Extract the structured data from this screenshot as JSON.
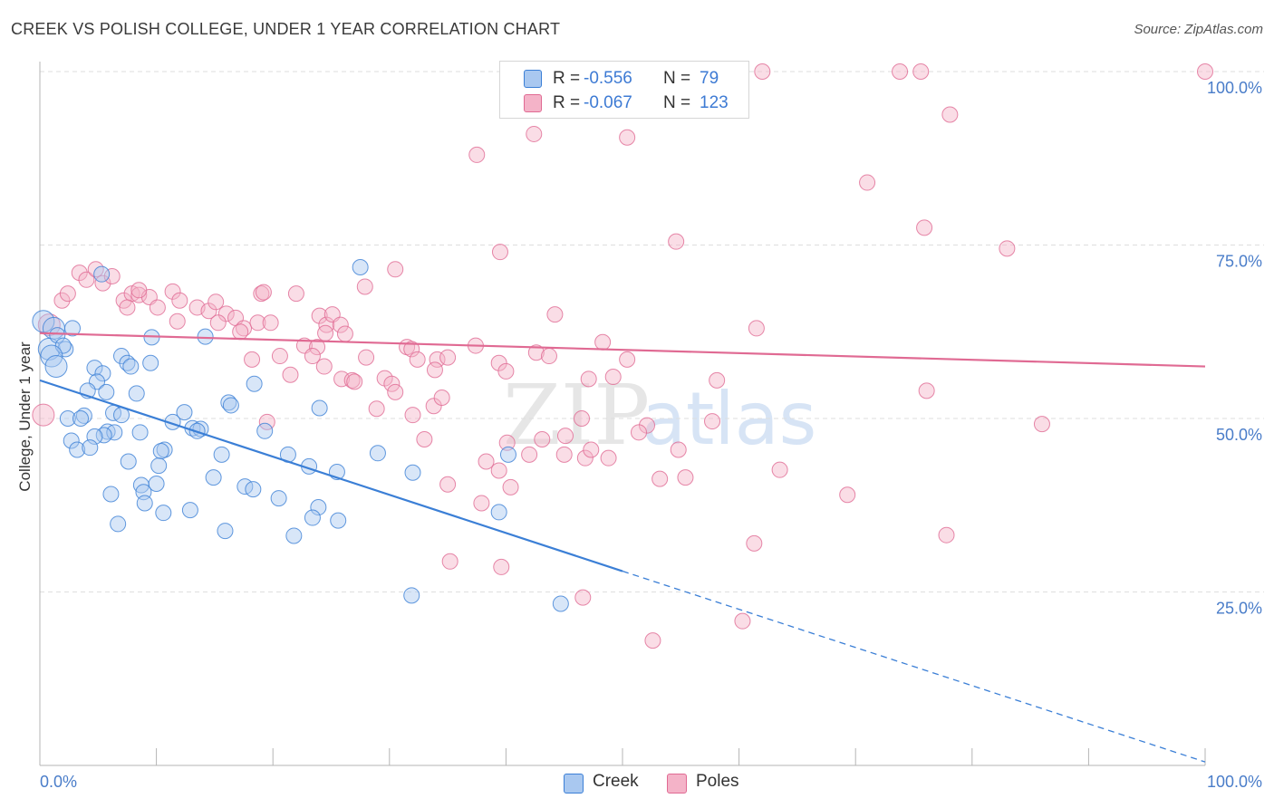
{
  "title": "CREEK VS POLISH COLLEGE, UNDER 1 YEAR CORRELATION CHART",
  "source": "Source: ZipAtlas.com",
  "watermark": {
    "zip": "ZIP",
    "atlas": "atlas"
  },
  "colors": {
    "creek": "#3b7fd6",
    "creek_fill": "#a9c8f0",
    "poles": "#e06a93",
    "poles_fill": "#f4b3c8",
    "grid": "#dedede",
    "tick_text": "#4a7dc9"
  },
  "legend": {
    "rows": [
      {
        "r_label": "R =",
        "r_value": "-0.556",
        "n_label": "N =",
        "n_value": "79"
      },
      {
        "r_label": "R =",
        "r_value": "-0.067",
        "n_label": "N =",
        "n_value": "123"
      }
    ],
    "bottom": [
      {
        "label": "Creek"
      },
      {
        "label": "Poles"
      }
    ]
  },
  "chart_data": {
    "type": "scatter",
    "title": "CREEK VS POLISH COLLEGE, UNDER 1 YEAR CORRELATION CHART",
    "xlabel": "",
    "ylabel": "College, Under 1 year",
    "xlim": [
      0,
      100
    ],
    "ylim": [
      0,
      100
    ],
    "x_tick_labels": [
      "0.0%",
      "100.0%"
    ],
    "y_ticks": [
      25,
      50,
      75,
      100
    ],
    "y_tick_labels": [
      "25.0%",
      "50.0%",
      "75.0%",
      "100.0%"
    ],
    "grid": "horizontal dashed",
    "legend_position": "top-center",
    "series": [
      {
        "name": "Creek",
        "r": -0.556,
        "n": 79,
        "trend": {
          "x0": 0,
          "y0": 55.5,
          "x1": 50,
          "y1": 28,
          "dashed_to": [
            100,
            0.5
          ]
        },
        "points": [
          [
            0.3,
            64
          ],
          [
            1.2,
            63
          ],
          [
            2.8,
            63
          ],
          [
            0.8,
            60
          ],
          [
            1.5,
            62
          ],
          [
            2.2,
            60
          ],
          [
            2.0,
            60.5
          ],
          [
            1.0,
            59
          ],
          [
            1.4,
            57.5
          ],
          [
            5.3,
            70.8
          ],
          [
            27.5,
            71.8
          ],
          [
            14.2,
            61.8
          ],
          [
            9.6,
            61.7
          ],
          [
            7.0,
            59
          ],
          [
            7.5,
            58
          ],
          [
            7.8,
            57.5
          ],
          [
            9.5,
            58
          ],
          [
            4.7,
            57.3
          ],
          [
            5.4,
            56.5
          ],
          [
            4.9,
            55.3
          ],
          [
            4.1,
            54
          ],
          [
            5.7,
            53.8
          ],
          [
            8.3,
            53.6
          ],
          [
            18.4,
            55
          ],
          [
            16.2,
            52.3
          ],
          [
            16.4,
            51.9
          ],
          [
            24.0,
            51.5
          ],
          [
            12.4,
            50.9
          ],
          [
            6.3,
            50.8
          ],
          [
            7.0,
            50.5
          ],
          [
            3.8,
            50.4
          ],
          [
            2.4,
            50
          ],
          [
            3.5,
            50
          ],
          [
            11.4,
            49.5
          ],
          [
            13.1,
            48.6
          ],
          [
            13.8,
            48.5
          ],
          [
            13.5,
            48.2
          ],
          [
            5.8,
            48.1
          ],
          [
            6.4,
            48
          ],
          [
            8.6,
            48
          ],
          [
            19.3,
            48.2
          ],
          [
            5.5,
            47.6
          ],
          [
            4.7,
            47.4
          ],
          [
            2.7,
            46.8
          ],
          [
            3.2,
            45.5
          ],
          [
            4.3,
            45.8
          ],
          [
            10.7,
            45.5
          ],
          [
            10.4,
            45.3
          ],
          [
            15.6,
            44.8
          ],
          [
            21.3,
            44.8
          ],
          [
            29.0,
            45
          ],
          [
            40.2,
            44.8
          ],
          [
            7.6,
            43.8
          ],
          [
            10.2,
            43.2
          ],
          [
            23.1,
            43.1
          ],
          [
            25.5,
            42.3
          ],
          [
            32.0,
            42.2
          ],
          [
            14.9,
            41.5
          ],
          [
            8.7,
            40.4
          ],
          [
            10.0,
            40.6
          ],
          [
            17.6,
            40.2
          ],
          [
            18.3,
            39.8
          ],
          [
            6.1,
            39.1
          ],
          [
            8.9,
            39.4
          ],
          [
            20.5,
            38.5
          ],
          [
            9.0,
            37.8
          ],
          [
            23.9,
            37.2
          ],
          [
            39.4,
            36.5
          ],
          [
            12.9,
            36.8
          ],
          [
            10.6,
            36.4
          ],
          [
            23.4,
            35.7
          ],
          [
            25.6,
            35.3
          ],
          [
            6.7,
            34.8
          ],
          [
            15.9,
            33.8
          ],
          [
            21.8,
            33.1
          ],
          [
            31.9,
            24.5
          ],
          [
            44.7,
            23.3
          ]
        ]
      },
      {
        "name": "Poles",
        "r": -0.067,
        "n": 123,
        "trend": {
          "x0": 0,
          "y0": 62.3,
          "x1": 100,
          "y1": 57.5
        },
        "points": [
          [
            0.3,
            50.5
          ],
          [
            0.8,
            63.5
          ],
          [
            1.9,
            67
          ],
          [
            2.4,
            68
          ],
          [
            3.4,
            71
          ],
          [
            4.0,
            70
          ],
          [
            4.8,
            71.5
          ],
          [
            5.4,
            69.5
          ],
          [
            6.2,
            70.5
          ],
          [
            7.2,
            67
          ],
          [
            7.9,
            68
          ],
          [
            8.5,
            67.8
          ],
          [
            7.5,
            66
          ],
          [
            9.4,
            67.5
          ],
          [
            10.1,
            66
          ],
          [
            8.5,
            68.5
          ],
          [
            11.4,
            68.3
          ],
          [
            12.0,
            67
          ],
          [
            13.5,
            66
          ],
          [
            11.8,
            64
          ],
          [
            14.5,
            65.5
          ],
          [
            15.1,
            66.8
          ],
          [
            16.0,
            65.1
          ],
          [
            15.3,
            63.8
          ],
          [
            16.8,
            64.5
          ],
          [
            17.5,
            63
          ],
          [
            17.2,
            62.5
          ],
          [
            18.7,
            63.8
          ],
          [
            19.0,
            68
          ],
          [
            19.8,
            63.8
          ],
          [
            19.2,
            68.2
          ],
          [
            22.0,
            68
          ],
          [
            24.0,
            64.8
          ],
          [
            24.6,
            63.5
          ],
          [
            25.1,
            65
          ],
          [
            25.8,
            63.5
          ],
          [
            26.2,
            62.2
          ],
          [
            24.5,
            62.3
          ],
          [
            27.9,
            69
          ],
          [
            30.5,
            71.5
          ],
          [
            22.7,
            60.5
          ],
          [
            23.8,
            60.3
          ],
          [
            31.5,
            60.3
          ],
          [
            23.4,
            59
          ],
          [
            28.0,
            58.8
          ],
          [
            20.6,
            59
          ],
          [
            18.2,
            58.5
          ],
          [
            31.9,
            60
          ],
          [
            32.4,
            58.5
          ],
          [
            34.1,
            58.5
          ],
          [
            35.0,
            58.8
          ],
          [
            37.4,
            60.5
          ],
          [
            24.4,
            57.5
          ],
          [
            21.5,
            56.3
          ],
          [
            25.9,
            55.7
          ],
          [
            26.8,
            55.5
          ],
          [
            27.0,
            55.3
          ],
          [
            29.6,
            55.8
          ],
          [
            30.2,
            55
          ],
          [
            30.5,
            53.8
          ],
          [
            33.9,
            57
          ],
          [
            42.6,
            59.5
          ],
          [
            39.4,
            58
          ],
          [
            40.0,
            56.8
          ],
          [
            43.7,
            59
          ],
          [
            48.3,
            61
          ],
          [
            50.4,
            58.5
          ],
          [
            47.1,
            55.7
          ],
          [
            49.2,
            56
          ],
          [
            58.1,
            55.5
          ],
          [
            28.9,
            51.4
          ],
          [
            32.0,
            50.5
          ],
          [
            33.8,
            51.8
          ],
          [
            34.5,
            53
          ],
          [
            19.5,
            49.5
          ],
          [
            33.0,
            47
          ],
          [
            40.1,
            46.5
          ],
          [
            43.1,
            47
          ],
          [
            45.1,
            47.5
          ],
          [
            46.5,
            50
          ],
          [
            45.0,
            44.8
          ],
          [
            46.8,
            44.3
          ],
          [
            42.0,
            44.8
          ],
          [
            48.8,
            44.3
          ],
          [
            47.3,
            45.5
          ],
          [
            54.8,
            45.5
          ],
          [
            52.1,
            49
          ],
          [
            51.4,
            48
          ],
          [
            57.7,
            49.6
          ],
          [
            76.1,
            54
          ],
          [
            61.5,
            63
          ],
          [
            86.0,
            49.2
          ],
          [
            53.2,
            41.3
          ],
          [
            55.4,
            41.5
          ],
          [
            63.5,
            42.6
          ],
          [
            38.3,
            43.8
          ],
          [
            39.4,
            42.5
          ],
          [
            35.0,
            40.5
          ],
          [
            40.4,
            40.1
          ],
          [
            37.9,
            37.8
          ],
          [
            69.3,
            39
          ],
          [
            77.8,
            33.2
          ],
          [
            61.3,
            32
          ],
          [
            35.2,
            29.4
          ],
          [
            39.6,
            28.6
          ],
          [
            46.6,
            24.2
          ],
          [
            60.3,
            20.8
          ],
          [
            52.6,
            18
          ],
          [
            44.2,
            65
          ],
          [
            37.5,
            88
          ],
          [
            42.4,
            91
          ],
          [
            50.4,
            90.5
          ],
          [
            49.0,
            100
          ],
          [
            62.0,
            100
          ],
          [
            73.8,
            100
          ],
          [
            75.6,
            100
          ],
          [
            78.1,
            93.8
          ],
          [
            71.0,
            84
          ],
          [
            75.9,
            77.5
          ],
          [
            83.0,
            74.5
          ],
          [
            54.6,
            75.5
          ],
          [
            39.5,
            74
          ],
          [
            100,
            100
          ]
        ]
      }
    ]
  }
}
